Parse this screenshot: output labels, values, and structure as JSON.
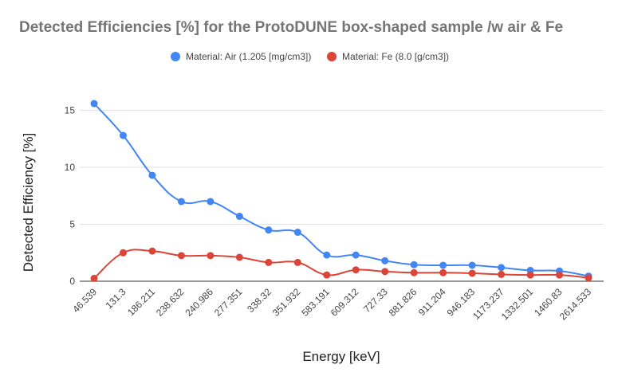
{
  "chart_data": {
    "type": "line",
    "title": "Detected Efficiencies [%] for the ProtoDUNE box-shaped sample /w air & Fe",
    "xlabel": "Energy [keV]",
    "ylabel": "Detected Efficiency [%]",
    "categories": [
      "46.539",
      "131.3",
      "186.211",
      "238.632",
      "240.986",
      "277.351",
      "338.32",
      "351.932",
      "583.191",
      "609.312",
      "727.33",
      "881.826",
      "911.204",
      "946.183",
      "1173.237",
      "1332.501",
      "1460.83",
      "2614.533"
    ],
    "yticks": [
      0,
      5,
      10,
      15
    ],
    "ylim": [
      0,
      17
    ],
    "grid": true,
    "legend_position": "top",
    "series": [
      {
        "name": "Material: Air (1.205 [mg/cm3])",
        "color": "#4285f4",
        "values": [
          15.6,
          12.8,
          9.3,
          7.0,
          7.0,
          5.7,
          4.5,
          4.3,
          2.3,
          2.3,
          1.8,
          1.45,
          1.4,
          1.4,
          1.2,
          0.95,
          0.9,
          0.45
        ]
      },
      {
        "name": "Material: Fe (8.0 [g/cm3])",
        "color": "#db4437",
        "values": [
          0.25,
          2.5,
          2.65,
          2.25,
          2.25,
          2.1,
          1.65,
          1.65,
          0.55,
          1.0,
          0.85,
          0.75,
          0.75,
          0.7,
          0.6,
          0.55,
          0.55,
          0.3
        ]
      }
    ]
  }
}
